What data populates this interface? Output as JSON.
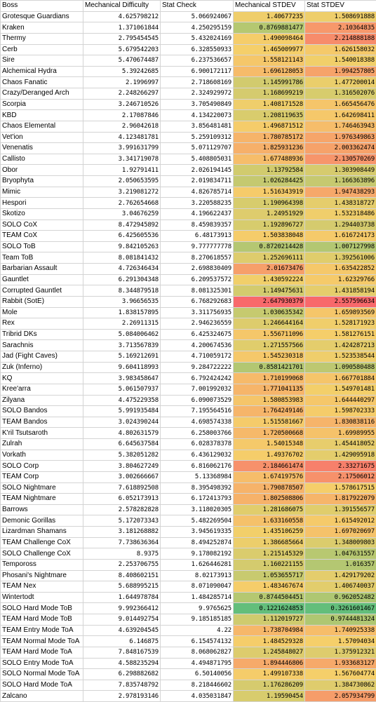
{
  "headers": [
    "Boss",
    "Mechanical Difficulty",
    "Stat Check",
    "Mechanical STDEV",
    "Stat STDEV"
  ],
  "rows": [
    [
      "Grotesque Guardians",
      "4.625798212",
      "5.066924067",
      "1.40677235",
      "1.508691888"
    ],
    [
      "Kraken",
      "1.371061844",
      "4.250295159",
      "0.8769881477",
      "2.10364835"
    ],
    [
      "Thermy",
      "2.795454545",
      "5.432024169",
      "1.490098464",
      "2.214888188"
    ],
    [
      "Cerb",
      "5.679542203",
      "6.328550933",
      "1.465009977",
      "1.626158032"
    ],
    [
      "Sire",
      "5.470674487",
      "6.237536657",
      "1.558121143",
      "1.540018388"
    ],
    [
      "Alchemical Hydra",
      "5.39242685",
      "6.900172117",
      "1.696128053",
      "1.994257805"
    ],
    [
      "Chaos Fanatic",
      "2.1996997",
      "2.718608169",
      "1.145991786",
      "1.477200014"
    ],
    [
      "Crazy/Deranged Arch",
      "2.248266297",
      "2.324929972",
      "1.168699219",
      "1.316502076"
    ],
    [
      "Scorpia",
      "3.246710526",
      "3.705490849",
      "1.408171528",
      "1.665456476"
    ],
    [
      "KBD",
      "2.17087846",
      "4.134220073",
      "1.208119635",
      "1.642698411"
    ],
    [
      "Chaos Elemental",
      "2.96042618",
      "3.856481481",
      "1.496871512",
      "1.746463943"
    ],
    [
      "Vet'ion",
      "4.123481781",
      "5.259109312",
      "1.780785172",
      "1.976349863"
    ],
    [
      "Venenatis",
      "3.991631799",
      "5.071129707",
      "1.825931236",
      "2.003362474"
    ],
    [
      "Callisto",
      "3.341719078",
      "5.408805031",
      "1.677488936",
      "2.130570269"
    ],
    [
      "Obor",
      "1.92791411",
      "2.026194145",
      "1.13792584",
      "1.303908449"
    ],
    [
      "Bryophyta",
      "2.050653595",
      "2.019834711",
      "1.026284425",
      "1.166363896"
    ],
    [
      "Mimic",
      "3.219081272",
      "4.826785714",
      "1.516343919",
      "1.947438293"
    ],
    [
      "Hespori",
      "2.762654668",
      "3.220588235",
      "1.190964398",
      "1.438318727"
    ],
    [
      "Skotizo",
      "3.04676259",
      "4.196622437",
      "1.24951929",
      "1.532318486"
    ],
    [
      "SOLO CoX",
      "8.472945892",
      "8.459839357",
      "1.192896727",
      "1.294403738"
    ],
    [
      "TEAM CoX",
      "6.425605536",
      "6.48173913",
      "1.503838048",
      "1.616724173"
    ],
    [
      "SOLO ToB",
      "9.842105263",
      "9.777777778",
      "0.8720214428",
      "1.007127998"
    ],
    [
      "Team ToB",
      "8.081841432",
      "8.270618557",
      "1.252696111",
      "1.392561006"
    ],
    [
      "Barbarian Assault",
      "4.726346434",
      "2.698830409",
      "2.01673476",
      "1.635422852"
    ],
    [
      "Gauntlet",
      "6.291304348",
      "6.209537572",
      "1.430592224",
      "1.62329766"
    ],
    [
      "Corrupted Gauntlet",
      "8.344879518",
      "8.081325301",
      "1.149475631",
      "1.431858194"
    ],
    [
      "Rabbit (SotE)",
      "3.96656535",
      "6.768292683",
      "2.647930379",
      "2.557596634"
    ],
    [
      "Mole",
      "1.838157895",
      "3.311756935",
      "1.030635342",
      "1.659893569"
    ],
    [
      "Rex",
      "2.26911315",
      "2.946236559",
      "1.246644164",
      "1.528171923"
    ],
    [
      "Tribrid DKs",
      "5.084006462",
      "6.425324675",
      "1.556711096",
      "1.581276151"
    ],
    [
      "Sarachnis",
      "3.713567839",
      "4.200674536",
      "1.271557566",
      "1.424287213"
    ],
    [
      "Jad (Fight Caves)",
      "5.169212691",
      "4.710059172",
      "1.545230318",
      "1.523538544"
    ],
    [
      "Zuk (Inferno)",
      "9.604118993",
      "9.284722222",
      "0.8581421701",
      "1.090580488"
    ],
    [
      "KQ",
      "3.983458647",
      "6.792424242",
      "1.710199068",
      "1.667701884"
    ],
    [
      "Kree'arra",
      "5.061507937",
      "7.001992032",
      "1.771041135",
      "1.549701481"
    ],
    [
      "Zilyana",
      "4.475229358",
      "6.090073529",
      "1.580853983",
      "1.644440297"
    ],
    [
      "SOLO Bandos",
      "5.991935484",
      "7.195564516",
      "1.764249146",
      "1.598702333"
    ],
    [
      "TEAM Bandos",
      "3.024390244",
      "4.698574338",
      "1.515581667",
      "1.830838116"
    ],
    [
      "K'ril Tsutsaroth",
      "4.802631579",
      "6.258003766",
      "1.720500668",
      "1.69989955"
    ],
    [
      "Zulrah",
      "6.645637584",
      "6.028378378",
      "1.54015348",
      "1.454418052"
    ],
    [
      "Vorkath",
      "5.382051282",
      "6.436129032",
      "1.49376702",
      "1.429095918"
    ],
    [
      "SOLO Corp",
      "3.804627249",
      "6.816062176",
      "2.184661474",
      "2.33271675"
    ],
    [
      "TEAM Corp",
      "3.002666667",
      "5.13368984",
      "1.674197576",
      "2.17506012"
    ],
    [
      "SOLO Nightmare",
      "7.618892508",
      "8.395498392",
      "1.790878507",
      "1.578617515"
    ],
    [
      "TEAM Nightmare",
      "6.052173913",
      "6.172413793",
      "1.802508806",
      "1.817922079"
    ],
    [
      "Barrows",
      "2.578282828",
      "3.118020305",
      "1.281686075",
      "1.391556577"
    ],
    [
      "Demonic Gorillas",
      "5.172073343",
      "5.482269504",
      "1.633160558",
      "1.615492012"
    ],
    [
      "Lizardman Shamans",
      "3.181268882",
      "3.945619335",
      "1.435106259",
      "1.697020697"
    ],
    [
      "TEAM Challenge CoX",
      "7.738636364",
      "8.494252874",
      "1.386685664",
      "1.348009803"
    ],
    [
      "SOLO Challenge CoX",
      "8.9375",
      "9.178082192",
      "1.215145329",
      "1.047631557"
    ],
    [
      "Tempoross",
      "2.253706755",
      "1.626446281",
      "1.160221155",
      "1.016357"
    ],
    [
      "Phosani's Nightmare",
      "8.408602151",
      "8.02173913",
      "1.053655717",
      "1.429179202"
    ],
    [
      "TEAM Nex",
      "5.688995215",
      "8.071090047",
      "1.483467674",
      "1.406740037"
    ],
    [
      "Wintertodt",
      "1.644978784",
      "1.484285714",
      "0.8744504451",
      "0.962052482"
    ],
    [
      "SOLO Hard Mode ToB",
      "9.992366412",
      "9.9765625",
      "0.1221624853",
      "0.3261601467"
    ],
    [
      "TEAM Hard Mode ToB",
      "9.014492754",
      "9.185185185",
      "1.112019727",
      "0.9744481324"
    ],
    [
      "TEAM Entry Mode ToA",
      "4.639204545",
      "4.22",
      "1.738704984",
      "1.740925338"
    ],
    [
      "TEAM Normal Mode ToA",
      "6.146875",
      "6.154574132",
      "1.484529328",
      "1.57094034"
    ],
    [
      "TEAM Hard Mode ToA",
      "7.848167539",
      "8.068062827",
      "1.245848027",
      "1.375912321"
    ],
    [
      "SOLO Entry Mode ToA",
      "4.588235294",
      "4.494871795",
      "1.894446806",
      "1.933683127"
    ],
    [
      "SOLO Normal Mode ToA",
      "6.298882682",
      "6.50140056",
      "1.499107338",
      "1.567604774"
    ],
    [
      "SOLO Hard Mode ToA",
      "7.835748792",
      "8.218446602",
      "1.176286209",
      "1.384730862"
    ],
    [
      "Zalcano",
      "2.978193146",
      "4.035031847",
      "1.19590454",
      "2.057934799"
    ]
  ],
  "colors": {
    "stdev_scale": {
      "min_color": "#63be7b",
      "mid_color": "#ffeb84",
      "max_color": "#f8696b",
      "mid_fill": "#f5cf6a"
    }
  }
}
